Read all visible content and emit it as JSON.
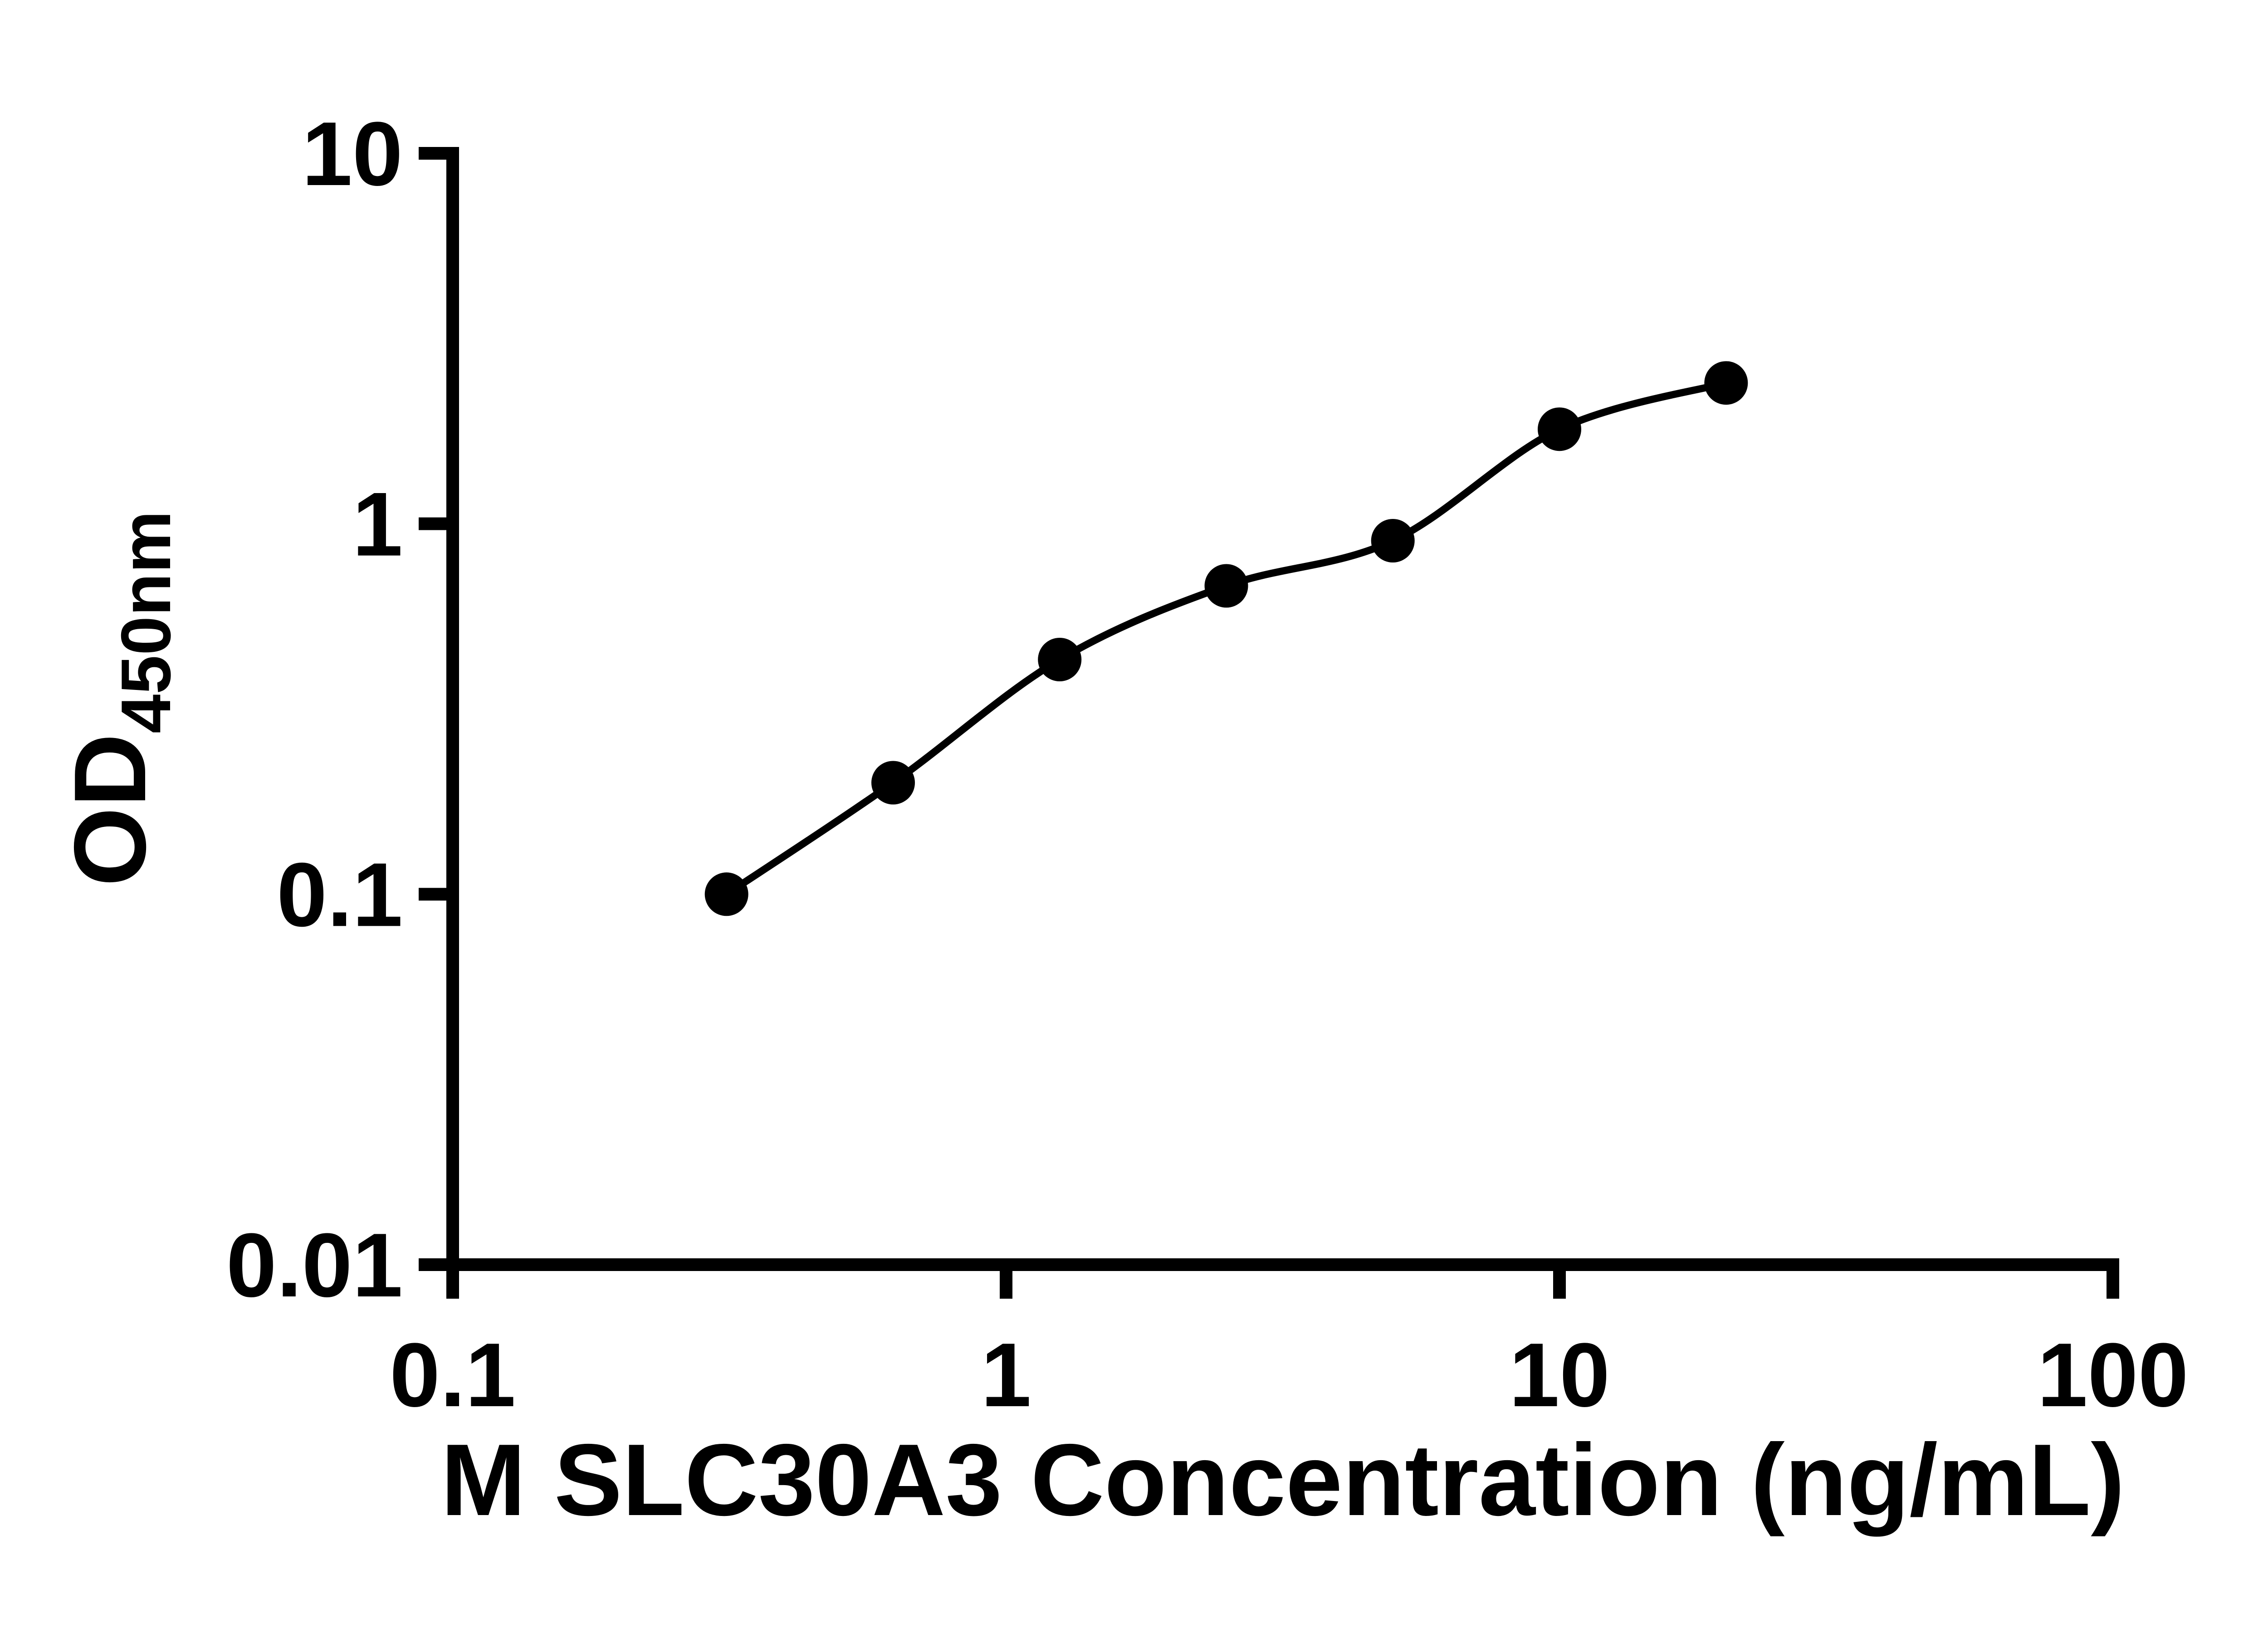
{
  "figure": {
    "background": "#ffffff",
    "description": "ELISA standard curve: log-log scatter plot with smooth fitted curve and filled circular markers"
  },
  "chart_data": {
    "type": "scatter",
    "x_scale": "log",
    "y_scale": "log",
    "x": [
      0.3125,
      0.625,
      1.25,
      2.5,
      5,
      10,
      20
    ],
    "y": [
      0.1,
      0.2,
      0.43,
      0.68,
      0.9,
      1.8,
      2.4
    ],
    "title": "",
    "xlabel": "M SLC30A3 Concentration (ng/mL)",
    "ylabel_main": "OD",
    "ylabel_sub": "450nm",
    "xlim": [
      0.1,
      100
    ],
    "ylim": [
      0.01,
      10
    ],
    "x_ticks": [
      0.1,
      1,
      10,
      100
    ],
    "x_tick_labels": [
      "0.1",
      "1",
      "10",
      "100"
    ],
    "y_ticks": [
      0.01,
      0.1,
      1,
      10
    ],
    "y_tick_labels": [
      "0.01",
      "0.1",
      "1",
      "10"
    ],
    "grid": false,
    "legend": null,
    "marker_shape": "filled-circle",
    "fit_line": "smooth curve through standards",
    "axis_color": "#000000",
    "marker_color": "#000000",
    "line_color": "#000000",
    "text_color": "#000000"
  }
}
